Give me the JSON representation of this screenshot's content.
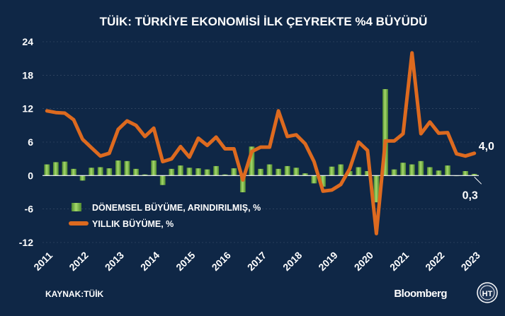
{
  "colors": {
    "background": "#0f2746",
    "bar_fill": "#5f9e3c",
    "bar_highlight": "#a5d86a",
    "line": "#dd6a1f",
    "text": "#ffffff",
    "grid": "#9aa6b5"
  },
  "footer": {
    "source": "KAYNAK:TÜİK",
    "brand": "Bloomberg",
    "brand_logo_icon": "bloomberg-ht-logo-icon"
  },
  "chart_data": {
    "type": "bar",
    "title": "TÜİK: TÜRKİYE EKONOMİSİ İLK ÇEYREKTE %4 BÜYÜDÜ",
    "xlabel": "",
    "ylabel": "",
    "ylim": [
      -12,
      24
    ],
    "yticks": [
      "24",
      "18",
      "12",
      "6",
      "0",
      "-6",
      "-12"
    ],
    "ytick_values": [
      24,
      18,
      12,
      6,
      0,
      -6,
      -12
    ],
    "xtick_labels": [
      "2011",
      "2012",
      "2013",
      "2014",
      "2015",
      "2016",
      "2017",
      "2018",
      "2019",
      "2020",
      "2021",
      "2022",
      "2023"
    ],
    "legend_position": "center-left",
    "x": [
      "2011Q1",
      "2011Q2",
      "2011Q3",
      "2011Q4",
      "2012Q1",
      "2012Q2",
      "2012Q3",
      "2012Q4",
      "2013Q1",
      "2013Q2",
      "2013Q3",
      "2013Q4",
      "2014Q1",
      "2014Q2",
      "2014Q3",
      "2014Q4",
      "2015Q1",
      "2015Q2",
      "2015Q3",
      "2015Q4",
      "2016Q1",
      "2016Q2",
      "2016Q3",
      "2016Q4",
      "2017Q1",
      "2017Q2",
      "2017Q3",
      "2017Q4",
      "2018Q1",
      "2018Q2",
      "2018Q3",
      "2018Q4",
      "2019Q1",
      "2019Q2",
      "2019Q3",
      "2019Q4",
      "2020Q1",
      "2020Q2",
      "2020Q3",
      "2020Q4",
      "2021Q1",
      "2021Q2",
      "2021Q3",
      "2021Q4",
      "2022Q1",
      "2022Q2",
      "2022Q3",
      "2022Q4",
      "2023Q1"
    ],
    "series": [
      {
        "name": "DÖNEMSEL BÜYÜME, ARINDIRILMIŞ, %",
        "type": "bar",
        "values": [
          2.0,
          2.4,
          2.5,
          1.2,
          -0.9,
          1.4,
          1.5,
          1.3,
          2.7,
          2.6,
          1.2,
          0.2,
          2.7,
          -1.7,
          1.2,
          1.8,
          1.4,
          1.3,
          1.1,
          1.7,
          0.2,
          1.3,
          -3.0,
          5.2,
          1.2,
          2.0,
          1.2,
          1.7,
          1.4,
          0.4,
          -1.4,
          -2.0,
          1.6,
          2.0,
          0.8,
          1.5,
          0.8,
          -4.8,
          15.5,
          1.1,
          2.3,
          2.0,
          2.6,
          1.5,
          0.9,
          1.8,
          -0.1,
          0.8,
          0.3
        ]
      },
      {
        "name": "YILLIK BÜYÜME,  %",
        "type": "line",
        "values": [
          11.6,
          11.3,
          11.2,
          10.0,
          6.5,
          5.0,
          3.5,
          4.0,
          8.3,
          9.8,
          9.0,
          7.0,
          8.5,
          2.5,
          3.0,
          5.2,
          3.3,
          6.7,
          5.4,
          6.9,
          4.8,
          4.8,
          -0.8,
          4.3,
          5.1,
          5.1,
          11.6,
          7.0,
          7.3,
          5.7,
          2.5,
          -2.8,
          -2.6,
          -1.6,
          1.2,
          6.0,
          4.5,
          -10.4,
          6.2,
          6.2,
          7.5,
          22.0,
          7.5,
          9.6,
          7.6,
          7.7,
          3.9,
          3.5,
          4.0
        ]
      }
    ],
    "annotations": [
      {
        "text": "4,0",
        "target": "2023Q1",
        "series": "line"
      },
      {
        "text": "0,3",
        "target": "2023Q1",
        "series": "bar"
      }
    ]
  }
}
